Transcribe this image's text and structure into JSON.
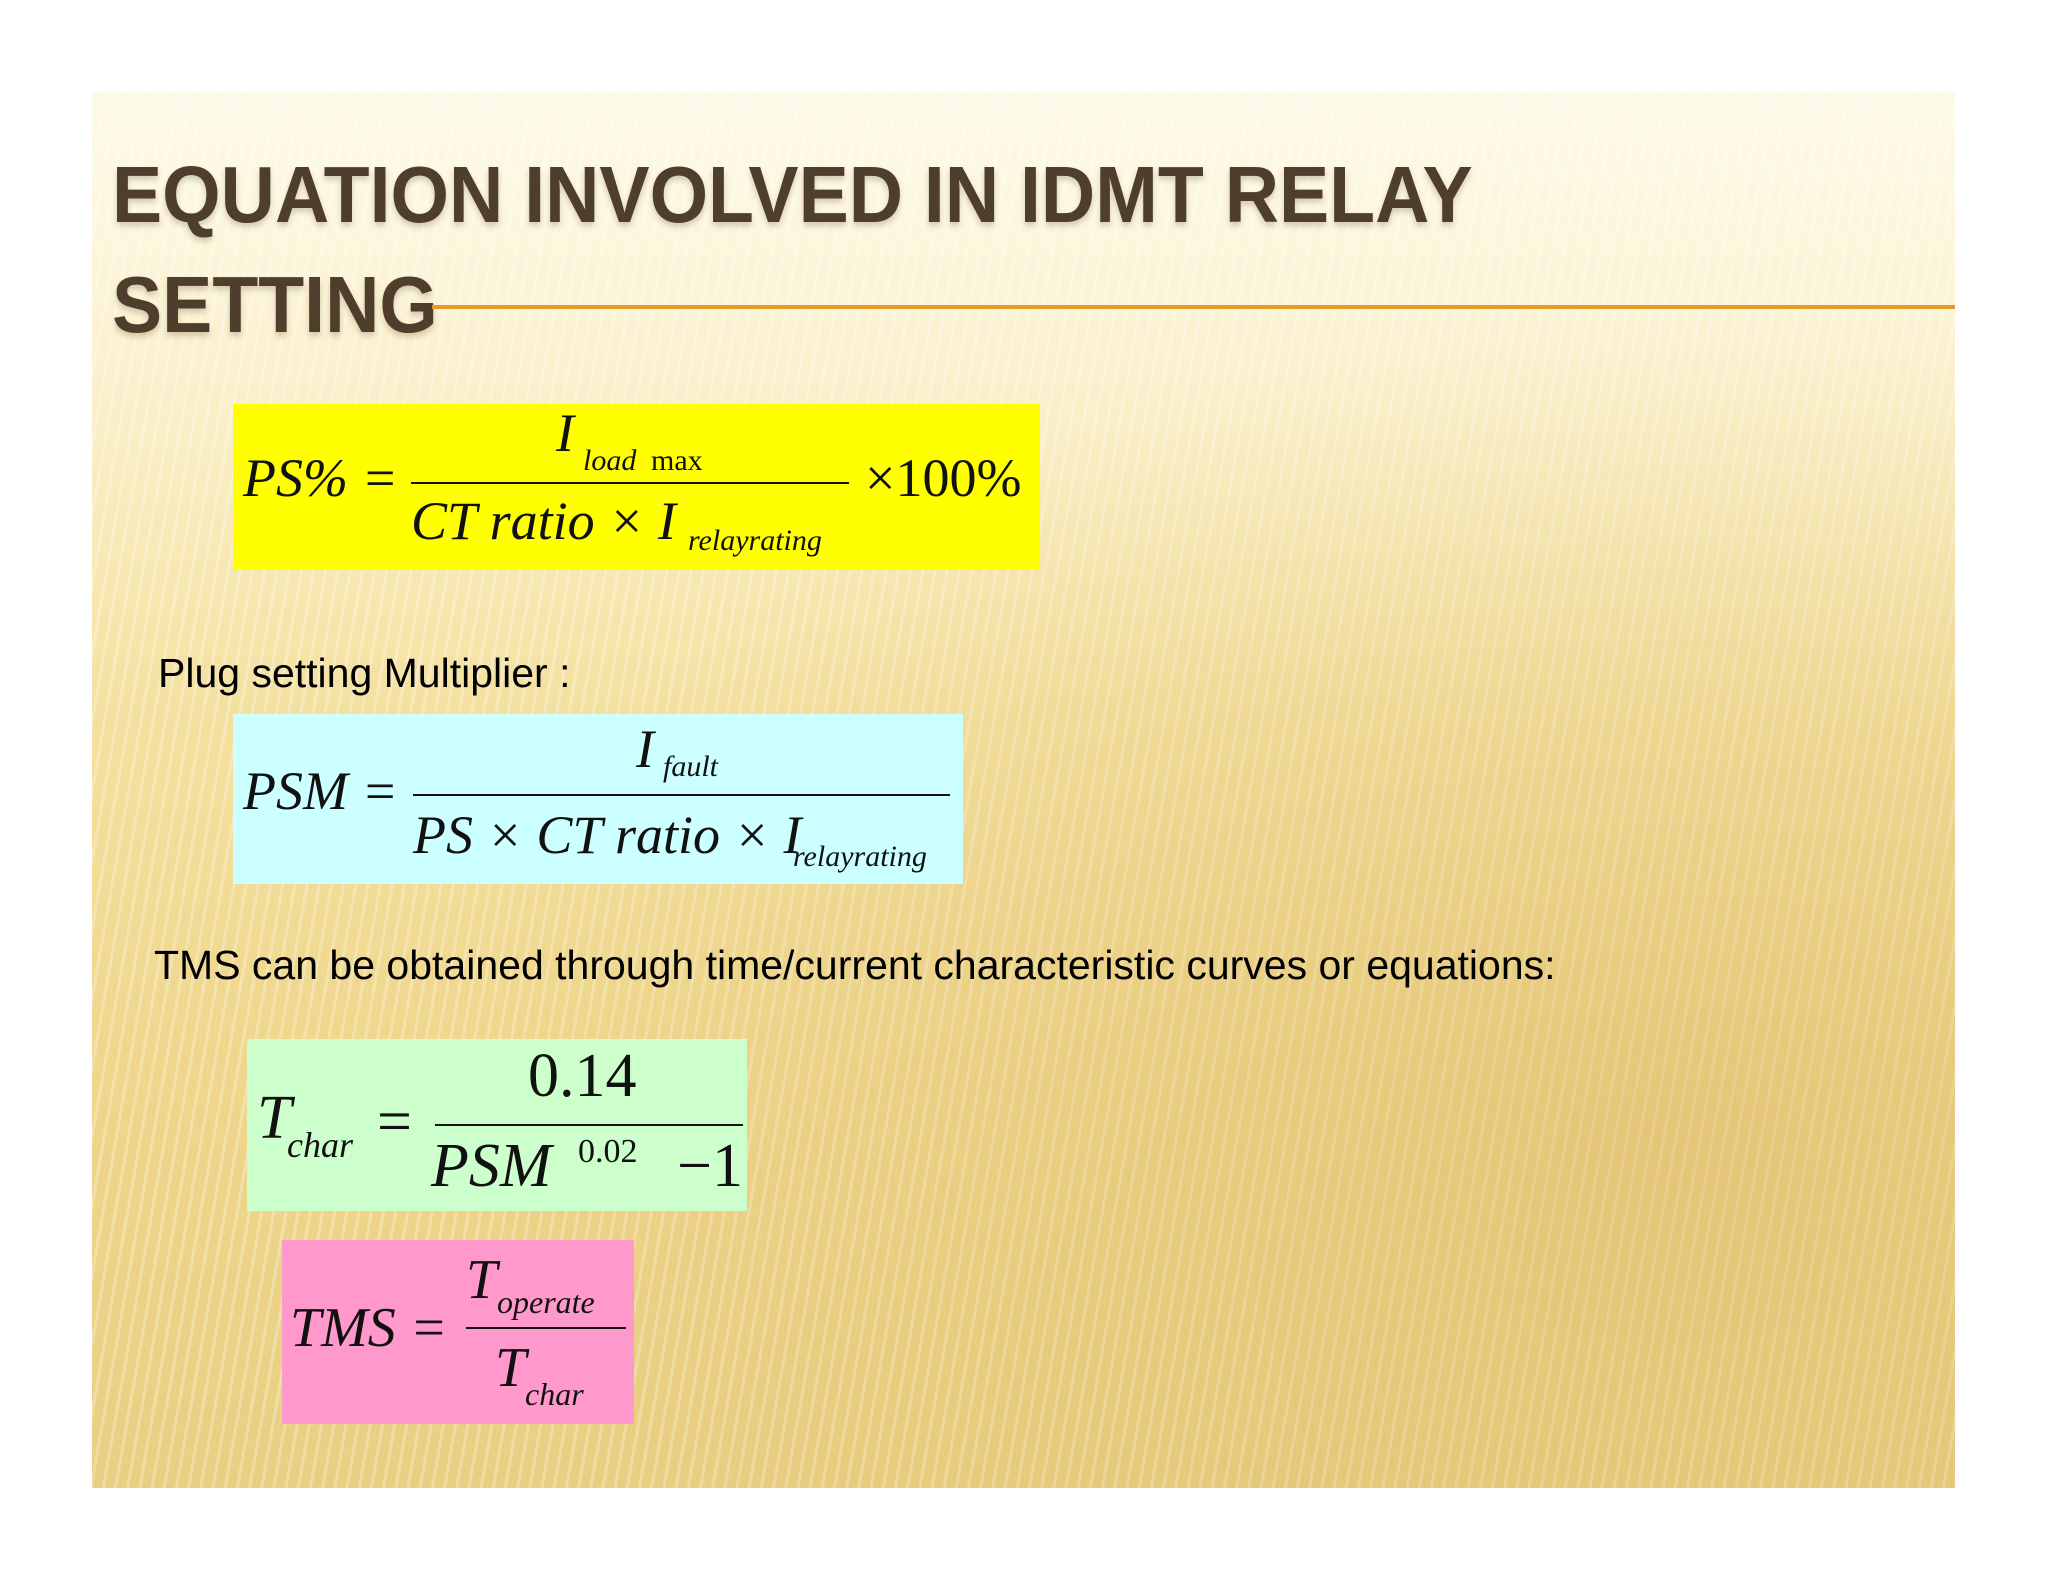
{
  "title": {
    "line1": "EQUATION INVOLVED IN IDMT RELAY",
    "line2": "SETTING"
  },
  "eq_ps": {
    "lhs": "PS% =",
    "num_I": "I",
    "num_sub_italic": "load",
    "num_sub_upright": "max",
    "den_main": "CT ratio × I",
    "den_sub": "relayrating",
    "times": "×100%"
  },
  "psm_label": "Plug setting Multiplier :",
  "eq_psm": {
    "lhs": "PSM =",
    "num_I": "I",
    "num_sub": "fault",
    "den_main": "PS × CT ratio × I",
    "den_sub": "relayrating"
  },
  "tms_label": "TMS can be obtained through time/current characteristic curves or equations:",
  "eq_tchar": {
    "lhs_T": "T",
    "lhs_sub": "char",
    "eq": "=",
    "num": "0.14",
    "den_main": "PSM",
    "den_exp": "0.02",
    "den_tail": "−1"
  },
  "eq_tms": {
    "lhs": "TMS =",
    "num_T": "T",
    "num_sub": "operate",
    "den_T": "T",
    "den_sub": "char"
  }
}
